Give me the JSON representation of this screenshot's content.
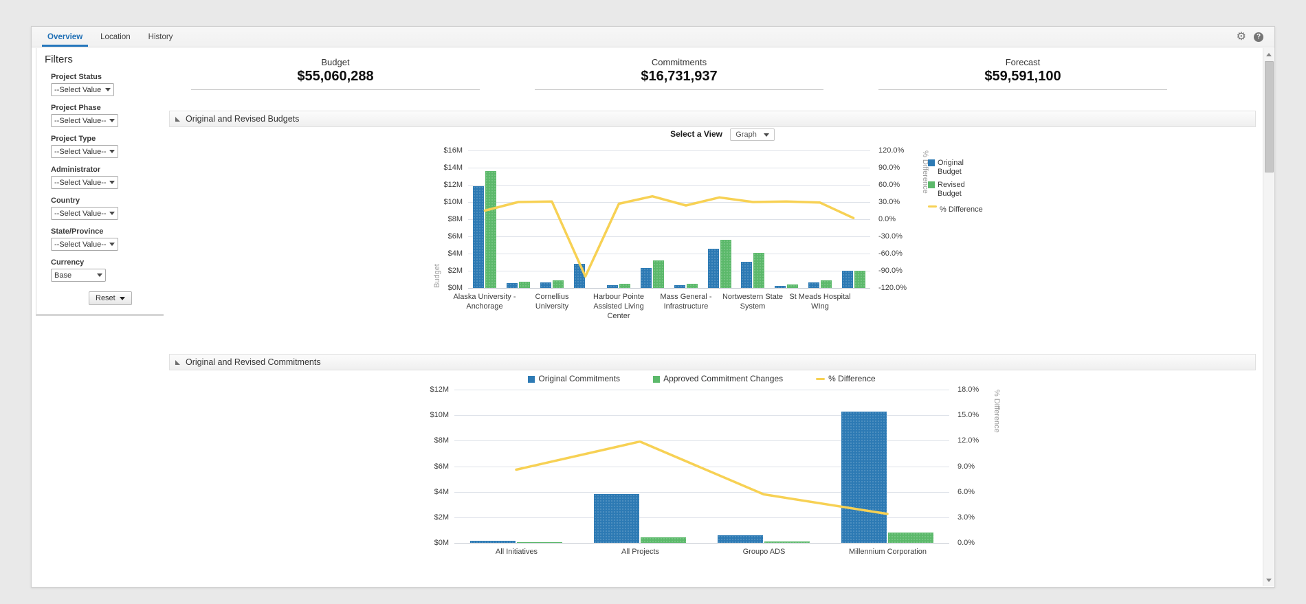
{
  "tabs": [
    {
      "label": "Overview",
      "active": true
    },
    {
      "label": "Location",
      "active": false
    },
    {
      "label": "History",
      "active": false
    }
  ],
  "header_icons": {
    "gear": "settings-gear",
    "help": "?"
  },
  "filters": {
    "heading": "Filters",
    "fields": [
      {
        "label": "Project Status",
        "value": "--Select Value"
      },
      {
        "label": "Project Phase",
        "value": "--Select Value--"
      },
      {
        "label": "Project Type",
        "value": "--Select Value--"
      },
      {
        "label": "Administrator",
        "value": "--Select Value--"
      },
      {
        "label": "Country",
        "value": "--Select Value--"
      },
      {
        "label": "State/Province",
        "value": "--Select Value--"
      }
    ],
    "currency": {
      "label": "Currency",
      "value": "Base"
    },
    "reset_label": "Reset"
  },
  "kpis": [
    {
      "label": "Budget",
      "value": "$55,060,288"
    },
    {
      "label": "Commitments",
      "value": "$16,731,937"
    },
    {
      "label": "Forecast",
      "value": "$59,591,100"
    }
  ],
  "sections": [
    {
      "title": "Original and Revised Budgets"
    },
    {
      "title": "Original and Revised Commitments"
    }
  ],
  "view_selector": {
    "label": "Select a View",
    "value": "Graph"
  },
  "colors": {
    "bar_blue": "#2d7ab4",
    "bar_green": "#5cb96b",
    "line_yellow": "#f7d154",
    "accent_blue": "#1f6fb5"
  },
  "chart_data": [
    {
      "type": "bar",
      "subtype": "combo-bar-line-dual-axis",
      "title": "Original and Revised Budgets",
      "categories": [
        "Alaska University - Anchorage",
        "",
        "Cornellius University",
        "",
        "Harbour Pointe Assisted Living Center",
        "",
        "Mass General - Infrastructure",
        "",
        "Nortwestern State System",
        "",
        "St Meads Hospital WIng",
        ""
      ],
      "series": [
        {
          "name": "Original Budget",
          "type": "bar",
          "axis": "left",
          "color": "#2d7ab4",
          "values": [
            11.8,
            0.55,
            0.65,
            2.8,
            0.35,
            2.3,
            0.3,
            4.6,
            3.0,
            0.25,
            0.6,
            2.0
          ]
        },
        {
          "name": "Revised Budget",
          "type": "bar",
          "axis": "left",
          "color": "#5cb96b",
          "values": [
            13.6,
            0.7,
            0.85,
            0,
            0.5,
            3.2,
            0.45,
            5.6,
            4.1,
            0.4,
            0.9,
            2.0
          ]
        },
        {
          "name": "% Difference",
          "type": "line",
          "axis": "right",
          "color": "#f7d154",
          "values": [
            15,
            30,
            31,
            -100,
            27,
            40,
            24,
            38,
            30,
            31,
            29,
            2
          ]
        }
      ],
      "ylabel_left": "Budget",
      "ylabel_right": "% Difference",
      "ylim_left": [
        0,
        16
      ],
      "ylim_right": [
        -120,
        120
      ],
      "yticks_left": [
        "$16M",
        "$14M",
        "$12M",
        "$10M",
        "$8M",
        "$6M",
        "$4M",
        "$2M",
        "$0M"
      ],
      "yticks_right": [
        "120.0%",
        "90.0%",
        "60.0%",
        "30.0%",
        "0.0%",
        "-30.0%",
        "-60.0%",
        "-90.0%",
        "-120.0%"
      ],
      "units_left": "millions USD",
      "grid": true,
      "legend_position": "right"
    },
    {
      "type": "bar",
      "subtype": "combo-bar-line-dual-axis",
      "title": "Original and Revised Commitments",
      "categories": [
        "All Initiatives",
        "All Projects",
        "Groupo ADS",
        "Millennium Corporation"
      ],
      "series": [
        {
          "name": "Original Commitments",
          "type": "bar",
          "axis": "left",
          "color": "#2d7ab4",
          "values": [
            0.15,
            3.8,
            0.6,
            10.3
          ]
        },
        {
          "name": "Approved Commitment Changes",
          "type": "bar",
          "axis": "left",
          "color": "#5cb96b",
          "values": [
            0.02,
            0.45,
            0.1,
            0.8
          ]
        },
        {
          "name": "% Difference",
          "type": "line",
          "axis": "right",
          "color": "#f7d154",
          "values": [
            8.6,
            11.9,
            5.7,
            3.4
          ]
        }
      ],
      "ylabel_left": "",
      "ylabel_right": "% Difference",
      "ylim_left": [
        0,
        12
      ],
      "ylim_right": [
        0,
        18
      ],
      "yticks_left": [
        "$12M",
        "$10M",
        "$8M",
        "$6M",
        "$4M",
        "$2M",
        "$0M"
      ],
      "yticks_right": [
        "18.0%",
        "15.0%",
        "12.0%",
        "9.0%",
        "6.0%",
        "3.0%",
        "0.0%"
      ],
      "units_left": "millions USD",
      "grid": true,
      "legend_position": "top"
    }
  ]
}
